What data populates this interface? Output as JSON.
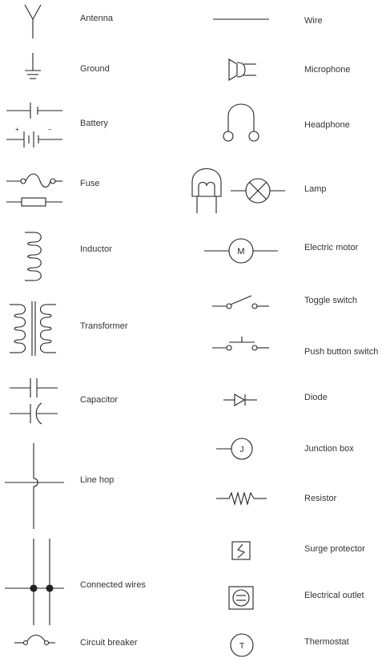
{
  "left_column": [
    {
      "id": "antenna",
      "label": "Antenna"
    },
    {
      "id": "ground",
      "label": "Ground"
    },
    {
      "id": "battery",
      "label": "Battery"
    },
    {
      "id": "fuse",
      "label": "Fuse"
    },
    {
      "id": "inductor",
      "label": "Inductor"
    },
    {
      "id": "transformer",
      "label": "Transformer"
    },
    {
      "id": "capacitor",
      "label": "Capacitor"
    },
    {
      "id": "line-hop",
      "label": "Line hop"
    },
    {
      "id": "connected-wires",
      "label": "Connected wires"
    },
    {
      "id": "circuit-breaker",
      "label": "Circuit breaker"
    }
  ],
  "right_column": [
    {
      "id": "wire",
      "label": "Wire"
    },
    {
      "id": "microphone",
      "label": "Microphone"
    },
    {
      "id": "headphone",
      "label": "Headphone"
    },
    {
      "id": "lamp",
      "label": "Lamp"
    },
    {
      "id": "electric-motor",
      "label": "Electric motor"
    },
    {
      "id": "toggle-switch",
      "label": "Toggle switch"
    },
    {
      "id": "push-button-switch",
      "label": "Push button switch"
    },
    {
      "id": "diode",
      "label": "Diode"
    },
    {
      "id": "junction-box",
      "label": "Junction box"
    },
    {
      "id": "resistor",
      "label": "Resistor"
    },
    {
      "id": "surge-protector",
      "label": "Surge protector"
    },
    {
      "id": "electrical-outlet",
      "label": "Electrical outlet"
    },
    {
      "id": "thermostat",
      "label": "Thermostat"
    }
  ],
  "symbol_text": {
    "battery_plus": "+",
    "battery_minus": "−",
    "motor": "M",
    "junction": "J",
    "thermostat": "T"
  }
}
